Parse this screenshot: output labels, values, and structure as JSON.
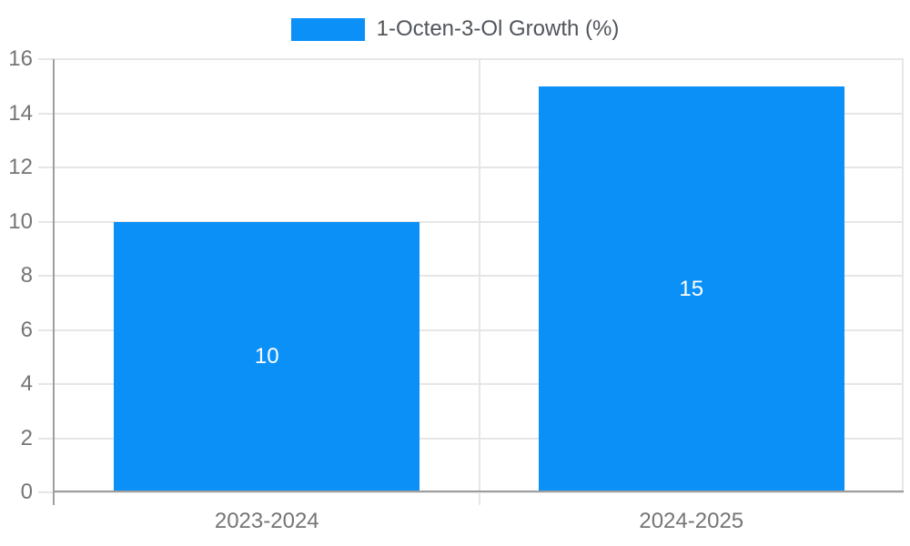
{
  "chart_data": {
    "type": "bar",
    "title": "",
    "legend": "1-Octen-3-Ol Growth (%)",
    "legend_position": "top",
    "categories": [
      "2023-2024",
      "2024-2025"
    ],
    "values": [
      10,
      15
    ],
    "value_labels": [
      "10",
      "15"
    ],
    "xlabel": "",
    "ylabel": "",
    "ylim": [
      0,
      16
    ],
    "yticks": [
      0,
      2,
      4,
      6,
      8,
      10,
      12,
      14,
      16
    ],
    "grid": true,
    "bar_width_fraction": 0.72,
    "colors": {
      "bar": "#0b90f8",
      "grid": "#e6e6e6",
      "axis": "#9e9e9e",
      "tick_text": "#757575",
      "legend_text": "#50555b",
      "value_label": "#ffffff",
      "background": "#ffffff"
    }
  }
}
